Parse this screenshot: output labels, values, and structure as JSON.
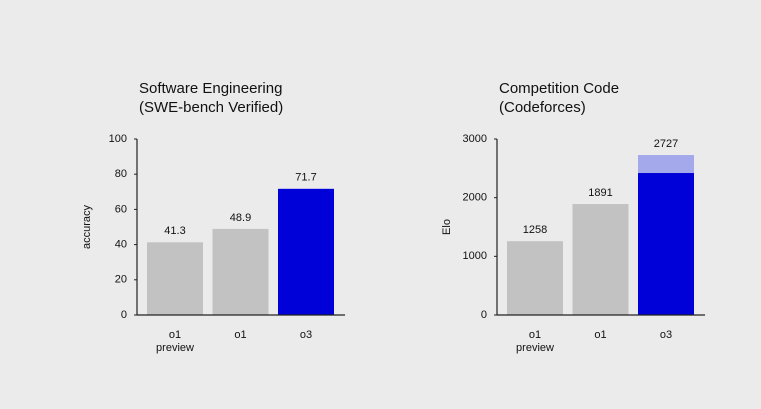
{
  "chart_data": [
    {
      "type": "bar",
      "title": [
        "Software Engineering",
        "(SWE-bench Verified)"
      ],
      "y_label": "accuracy",
      "categories": [
        [
          "o1",
          "preview"
        ],
        [
          "o1"
        ],
        [
          "o3"
        ]
      ],
      "values": [
        41.3,
        48.9,
        71.7
      ],
      "bar_colors": [
        "#c2c2c2",
        "#c2c2c2",
        "#0000d8"
      ],
      "ylim": [
        0,
        100
      ],
      "yticks": [
        0,
        20,
        40,
        60,
        80,
        100
      ]
    },
    {
      "type": "bar",
      "title": [
        "Competition Code",
        "(Codeforces)"
      ],
      "y_label": "Elo",
      "categories": [
        [
          "o1",
          "preview"
        ],
        [
          "o1"
        ],
        [
          "o3"
        ]
      ],
      "values": [
        1258,
        1891,
        2727
      ],
      "bar_colors": [
        "#c2c2c2",
        "#c2c2c2",
        "#a3a9ea"
      ],
      "inner_values": [
        null,
        null,
        2420
      ],
      "inner_color": "#0000d8",
      "ylim": [
        0,
        3000
      ],
      "yticks": [
        0,
        1000,
        2000,
        3000
      ]
    }
  ]
}
